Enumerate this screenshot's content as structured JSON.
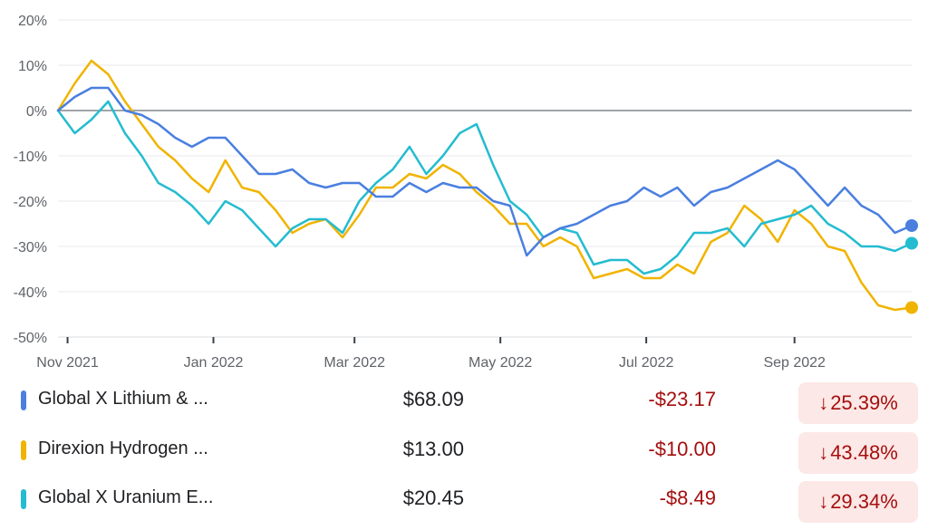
{
  "chart_data": {
    "type": "line",
    "ylim": [
      -50,
      20
    ],
    "yticks": [
      "20%",
      "10%",
      "0%",
      "-10%",
      "-20%",
      "-30%",
      "-40%",
      "-50%"
    ],
    "xticks": [
      "Nov 2021",
      "Jan 2022",
      "Mar 2022",
      "May 2022",
      "Jul 2022",
      "Sep 2022"
    ],
    "x": [
      "2021-10-28",
      "2021-11-04",
      "2021-11-11",
      "2021-11-18",
      "2021-11-25",
      "2021-12-02",
      "2021-12-09",
      "2021-12-16",
      "2021-12-23",
      "2021-12-30",
      "2022-01-06",
      "2022-01-13",
      "2022-01-20",
      "2022-01-27",
      "2022-02-03",
      "2022-02-10",
      "2022-02-17",
      "2022-02-24",
      "2022-03-03",
      "2022-03-10",
      "2022-03-17",
      "2022-03-24",
      "2022-03-31",
      "2022-04-07",
      "2022-04-14",
      "2022-04-21",
      "2022-04-28",
      "2022-05-05",
      "2022-05-12",
      "2022-05-19",
      "2022-05-26",
      "2022-06-02",
      "2022-06-09",
      "2022-06-16",
      "2022-06-23",
      "2022-06-30",
      "2022-07-07",
      "2022-07-14",
      "2022-07-21",
      "2022-07-28",
      "2022-08-04",
      "2022-08-11",
      "2022-08-18",
      "2022-08-25",
      "2022-09-01",
      "2022-09-08",
      "2022-09-15",
      "2022-09-22",
      "2022-09-29",
      "2022-10-06",
      "2022-10-13",
      "2022-10-20"
    ],
    "series": [
      {
        "name": "Global X Lithium & ...",
        "color": "#4a7fe0",
        "values": [
          0,
          3,
          5,
          5,
          0,
          -1,
          -3,
          -6,
          -8,
          -6,
          -6,
          -10,
          -14,
          -14,
          -13,
          -16,
          -17,
          -16,
          -16,
          -19,
          -19,
          -16,
          -18,
          -16,
          -17,
          -17,
          -20,
          -21,
          -32,
          -28,
          -26,
          -25,
          -23,
          -21,
          -20,
          -17,
          -19,
          -17,
          -21,
          -18,
          -17,
          -15,
          -13,
          -11,
          -13,
          -17,
          -21,
          -17,
          -21,
          -23,
          -27,
          -25.4
        ]
      },
      {
        "name": "Direxion Hydrogen ...",
        "color": "#f0b400",
        "values": [
          0,
          6,
          11,
          8,
          2,
          -3,
          -8,
          -11,
          -15,
          -18,
          -11,
          -17,
          -18,
          -22,
          -27,
          -25,
          -24,
          -28,
          -23,
          -17,
          -17,
          -14,
          -15,
          -12,
          -14,
          -18,
          -21,
          -25,
          -25,
          -30,
          -28,
          -30,
          -37,
          -36,
          -35,
          -37,
          -37,
          -34,
          -36,
          -29,
          -27,
          -21,
          -24,
          -29,
          -22,
          -25,
          -30,
          -31,
          -38,
          -43,
          -44,
          -43.5
        ]
      },
      {
        "name": "Global X Uranium E...",
        "color": "#24bcd0",
        "values": [
          0,
          -5,
          -2,
          2,
          -5,
          -10,
          -16,
          -18,
          -21,
          -25,
          -20,
          -22,
          -26,
          -30,
          -26,
          -24,
          -24,
          -27,
          -20,
          -16,
          -13,
          -8,
          -14,
          -10,
          -5,
          -3,
          -12,
          -20,
          -23,
          -28,
          -26,
          -27,
          -34,
          -33,
          -33,
          -36,
          -35,
          -32,
          -27,
          -27,
          -26,
          -30,
          -25,
          -24,
          -23,
          -21,
          -25,
          -27,
          -30,
          -30,
          -31,
          -29.3
        ]
      }
    ]
  },
  "legend": [
    {
      "name": "Global X Lithium & ...",
      "price": "$68.09",
      "change": "-$23.17",
      "pct": "25.39%",
      "color": "#4a7fe0"
    },
    {
      "name": "Direxion Hydrogen ...",
      "price": "$13.00",
      "change": "-$10.00",
      "pct": "43.48%",
      "color": "#f0b400"
    },
    {
      "name": "Global X Uranium E...",
      "price": "$20.45",
      "change": "-$8.49",
      "pct": "29.34%",
      "color": "#24bcd0"
    }
  ],
  "arrow_glyph": "↓"
}
